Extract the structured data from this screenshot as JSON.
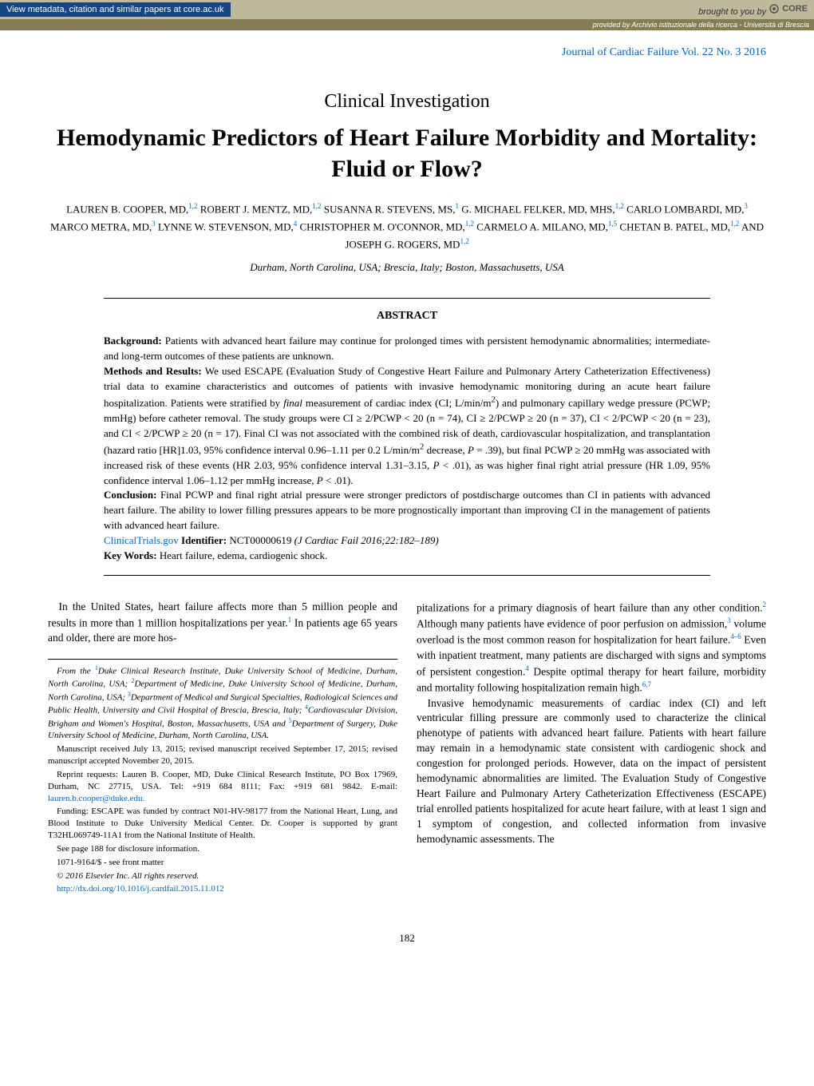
{
  "topbar": {
    "left": "View metadata, citation and similar papers at core.ac.uk",
    "right_prefix": "brought to you by",
    "core": "CORE",
    "provided": "provided by Archivio istituzionale della ricerca - Università di Brescia"
  },
  "journal": "Journal of Cardiac Failure Vol. 22 No. 3 2016",
  "section_type": "Clinical Investigation",
  "title": "Hemodynamic Predictors of Heart Failure Morbidity and Mortality: Fluid or Flow?",
  "authors_html": "LAUREN B. COOPER, MD,<sup>1,2</sup> ROBERT J. MENTZ, MD,<sup>1,2</sup> SUSANNA R. STEVENS, MS,<sup>1</sup> G. MICHAEL FELKER, MD, MHS,<sup>1,2</sup> CARLO LOMBARDI, MD,<sup>3</sup> MARCO METRA, MD,<sup>3</sup> LYNNE W. STEVENSON, MD,<sup>4</sup> CHRISTOPHER M. O'CONNOR, MD,<sup>1,2</sup> CARMELO A. MILANO, MD,<sup>1,5</sup> CHETAN B. PATEL, MD,<sup>1,2</sup> AND JOSEPH G. ROGERS, MD<sup>1,2</sup>",
  "affil_loc": "Durham, North Carolina, USA; Brescia, Italy; Boston, Massachusetts, USA",
  "abstract": {
    "head": "ABSTRACT",
    "background_label": "Background:",
    "background": "Patients with advanced heart failure may continue for prolonged times with persistent hemodynamic abnormalities; intermediate- and long-term outcomes of these patients are unknown.",
    "methods_label": "Methods and Results:",
    "methods": "We used ESCAPE (Evaluation Study of Congestive Heart Failure and Pulmonary Artery Catheterization Effectiveness) trial data to examine characteristics and outcomes of patients with invasive hemodynamic monitoring during an acute heart failure hospitalization. Patients were stratified by <i>final</i> measurement of cardiac index (CI; L/min/m<sup style='color:#000'>2</sup>) and pulmonary capillary wedge pressure (PCWP; mmHg) before catheter removal. The study groups were CI ≥ 2/PCWP < 20 (n = 74), CI ≥ 2/PCWP ≥ 20 (n = 37), CI < 2/PCWP < 20 (n = 23), and CI < 2/PCWP ≥ 20 (n = 17). Final CI was not associated with the combined risk of death, cardiovascular hospitalization, and transplantation (hazard ratio [HR]1.03, 95% confidence interval 0.96–1.11 per 0.2 L/min/m<sup style='color:#000'>2</sup> decrease, <i>P</i> = .39), but final PCWP ≥ 20 mmHg was associated with increased risk of these events (HR 2.03, 95% confidence interval 1.31–3.15, <i>P</i> < .01), as was higher final right atrial pressure (HR 1.09, 95% confidence interval 1.06–1.12 per mmHg increase, <i>P</i> < .01).",
    "conclusion_label": "Conclusion:",
    "conclusion": "Final PCWP and final right atrial pressure were stronger predictors of postdischarge outcomes than CI in patients with advanced heart failure. The ability to lower filling pressures appears to be more prognostically important than improving CI in the management of patients with advanced heart failure.",
    "trialreg": "ClinicalTrials.gov",
    "identifier_label": "Identifier:",
    "identifier": "NCT00000619",
    "citation": "(J Cardiac Fail 2016;22:182–189)",
    "keywords_label": "Key Words:",
    "keywords": "Heart failure, edema, cardiogenic shock."
  },
  "body": {
    "left_p1": "In the United States, heart failure affects more than 5 million people and results in more than 1 million hospitalizations per year.<sup>1</sup> In patients age 65 years and older, there are more hos-",
    "right_p1": "pitalizations for a primary diagnosis of heart failure than any other condition.<sup>2</sup> Although many patients have evidence of poor perfusion on admission,<sup>3</sup> volume overload is the most common reason for hospitalization for heart failure.<sup>4–6</sup> Even with inpatient treatment, many patients are discharged with signs and symptoms of persistent congestion.<sup>4</sup> Despite optimal therapy for heart failure, morbidity and mortality following hospitalization remain high.<sup>6,7</sup>",
    "right_p2": "Invasive hemodynamic measurements of cardiac index (CI) and left ventricular filling pressure are commonly used to characterize the clinical phenotype of patients with advanced heart failure. Patients with heart failure may remain in a hemodynamic state consistent with cardiogenic shock and congestion for prolonged periods. However, data on the impact of persistent hemodynamic abnormalities are limited. The Evaluation Study of Congestive Heart Failure and Pulmonary Artery Catheterization Effectiveness (ESCAPE) trial enrolled patients hospitalized for acute heart failure, with at least 1 sign and 1 symptom of congestion, and collected information from invasive hemodynamic assessments. The"
  },
  "footnotes": {
    "from": "From the <sup>1</sup>Duke Clinical Research Institute, Duke University School of Medicine, Durham, North Carolina, USA; <sup>2</sup>Department of Medicine, Duke University School of Medicine, Durham, North Carolina, USA; <sup>3</sup>Department of Medical and Surgical Specialties, Radiological Sciences and Public Health, University and Civil Hospital of Brescia, Brescia, Italy; <sup>4</sup>Cardiovascular Division, Brigham and Women's Hospital, Boston, Massachusetts, USA and <sup>5</sup>Department of Surgery, Duke University School of Medicine, Durham, North Carolina, USA.",
    "manuscript": "Manuscript received July 13, 2015; revised manuscript received September 17, 2015; revised manuscript accepted November 20, 2015.",
    "reprints": "Reprint requests: Lauren B. Cooper, MD, Duke Clinical Research Institute, PO Box 17969, Durham, NC 27715, USA. Tel: +919 684 8111; Fax: +919 681 9842. E-mail: ",
    "email": "lauren.b.cooper@duke.edu.",
    "funding": "Funding: ESCAPE was funded by contract N01-HV-98177 from the National Heart, Lung, and Blood Institute to Duke University Medical Center. Dr. Cooper is supported by grant T32HL069749-11A1 from the National Institute of Health.",
    "disclosure": "See page 188 for disclosure information.",
    "issn": "1071-9164/$ - see front matter",
    "copyright": "© 2016 Elsevier Inc. All rights reserved.",
    "doi": "http://dx.doi.org/10.1016/j.cardfail.2015.11.012"
  },
  "pagenum": "182"
}
